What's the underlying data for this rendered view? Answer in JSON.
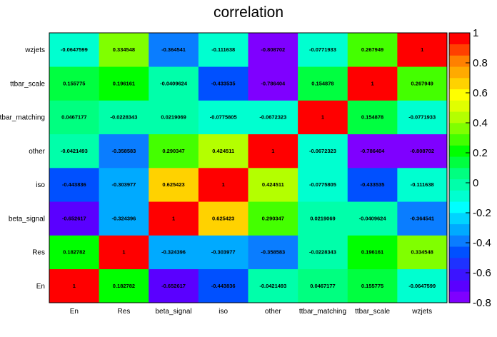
{
  "chart_data": {
    "type": "heatmap",
    "title": "correlation",
    "x_labels": [
      "En",
      "Res",
      "beta_signal",
      "iso",
      "other",
      "ttbar_matching",
      "ttbar_scale",
      "wzjets"
    ],
    "y_labels": [
      "En",
      "Res",
      "beta_signal",
      "iso",
      "other",
      "ttbar_matching",
      "ttbar_scale",
      "wzjets"
    ],
    "values": [
      [
        1,
        0.182782,
        -0.652617,
        -0.443836,
        -0.0421493,
        0.0467177,
        0.155775,
        -0.0647599
      ],
      [
        0.182782,
        1,
        -0.324396,
        -0.303977,
        -0.358583,
        -0.0228343,
        0.196161,
        0.334548
      ],
      [
        -0.652617,
        -0.324396,
        1,
        0.625423,
        0.290347,
        0.0219069,
        -0.0409624,
        -0.364541
      ],
      [
        -0.443836,
        -0.303977,
        0.625423,
        1,
        0.424511,
        -0.0775805,
        -0.433535,
        -0.111638
      ],
      [
        -0.0421493,
        -0.358583,
        0.290347,
        0.424511,
        1,
        -0.0672323,
        -0.786404,
        -0.808702
      ],
      [
        0.0467177,
        -0.0228343,
        0.0219069,
        -0.0775805,
        -0.0672323,
        1,
        0.154878,
        -0.0771933
      ],
      [
        0.155775,
        0.196161,
        -0.0409624,
        -0.433535,
        -0.786404,
        0.154878,
        1,
        0.267949
      ],
      [
        -0.0647599,
        0.334548,
        -0.364541,
        -0.111638,
        -0.808702,
        -0.0771933,
        0.267949,
        1
      ]
    ],
    "labels": [
      [
        "1",
        "0.182782",
        "-0.652617",
        "-0.443836",
        "-0.0421493",
        "0.0467177",
        "0.155775",
        "-0.0647599"
      ],
      [
        "0.182782",
        "1",
        "-0.324396",
        "-0.303977",
        "-0.358583",
        "-0.0228343",
        "0.196161",
        "0.334548"
      ],
      [
        "-0.652617",
        "-0.324396",
        "1",
        "0.625423",
        "0.290347",
        "0.0219069",
        "-0.0409624",
        "-0.364541"
      ],
      [
        "-0.443836",
        "-0.303977",
        "0.625423",
        "1",
        "0.424511",
        "-0.0775805",
        "-0.433535",
        "-0.111638"
      ],
      [
        "-0.0421493",
        "-0.358583",
        "0.290347",
        "0.424511",
        "1",
        "-0.0672323",
        "-0.786404",
        "-0.808702"
      ],
      [
        "0.0467177",
        "-0.0228343",
        "0.0219069",
        "-0.0775805",
        "-0.0672323",
        "1",
        "0.154878",
        "-0.0771933"
      ],
      [
        "0.155775",
        "0.196161",
        "-0.0409624",
        "-0.433535",
        "-0.786404",
        "0.154878",
        "1",
        "0.267949"
      ],
      [
        "-0.0647599",
        "0.334548",
        "-0.364541",
        "-0.111638",
        "-0.808702",
        "-0.0771933",
        "0.267949",
        "1"
      ]
    ],
    "zlim": [
      -0.8,
      1
    ],
    "color_scale": {
      "min": -0.8,
      "max": 1,
      "ticks": [
        "1",
        "0.8",
        "0.6",
        "0.4",
        "0.2",
        "0",
        "-0.2",
        "-0.4",
        "-0.6",
        "-0.8"
      ],
      "tick_values": [
        1,
        0.8,
        0.6,
        0.4,
        0.2,
        0,
        -0.2,
        -0.4,
        -0.6,
        -0.8
      ],
      "colors": [
        "#7f00ff",
        "#5a00ff",
        "#3c14ff",
        "#1e32ff",
        "#0050ff",
        "#0a7dff",
        "#00aaff",
        "#00d4ff",
        "#00ffff",
        "#00ffd0",
        "#00ffaa",
        "#00ff80",
        "#00ff40",
        "#00ff00",
        "#44ff00",
        "#80ff00",
        "#b4ff00",
        "#e0ff00",
        "#ffff00",
        "#ffd200",
        "#ffaa00",
        "#ff8000",
        "#ff4000",
        "#ff0000"
      ]
    },
    "grid": false,
    "legend": "right"
  }
}
